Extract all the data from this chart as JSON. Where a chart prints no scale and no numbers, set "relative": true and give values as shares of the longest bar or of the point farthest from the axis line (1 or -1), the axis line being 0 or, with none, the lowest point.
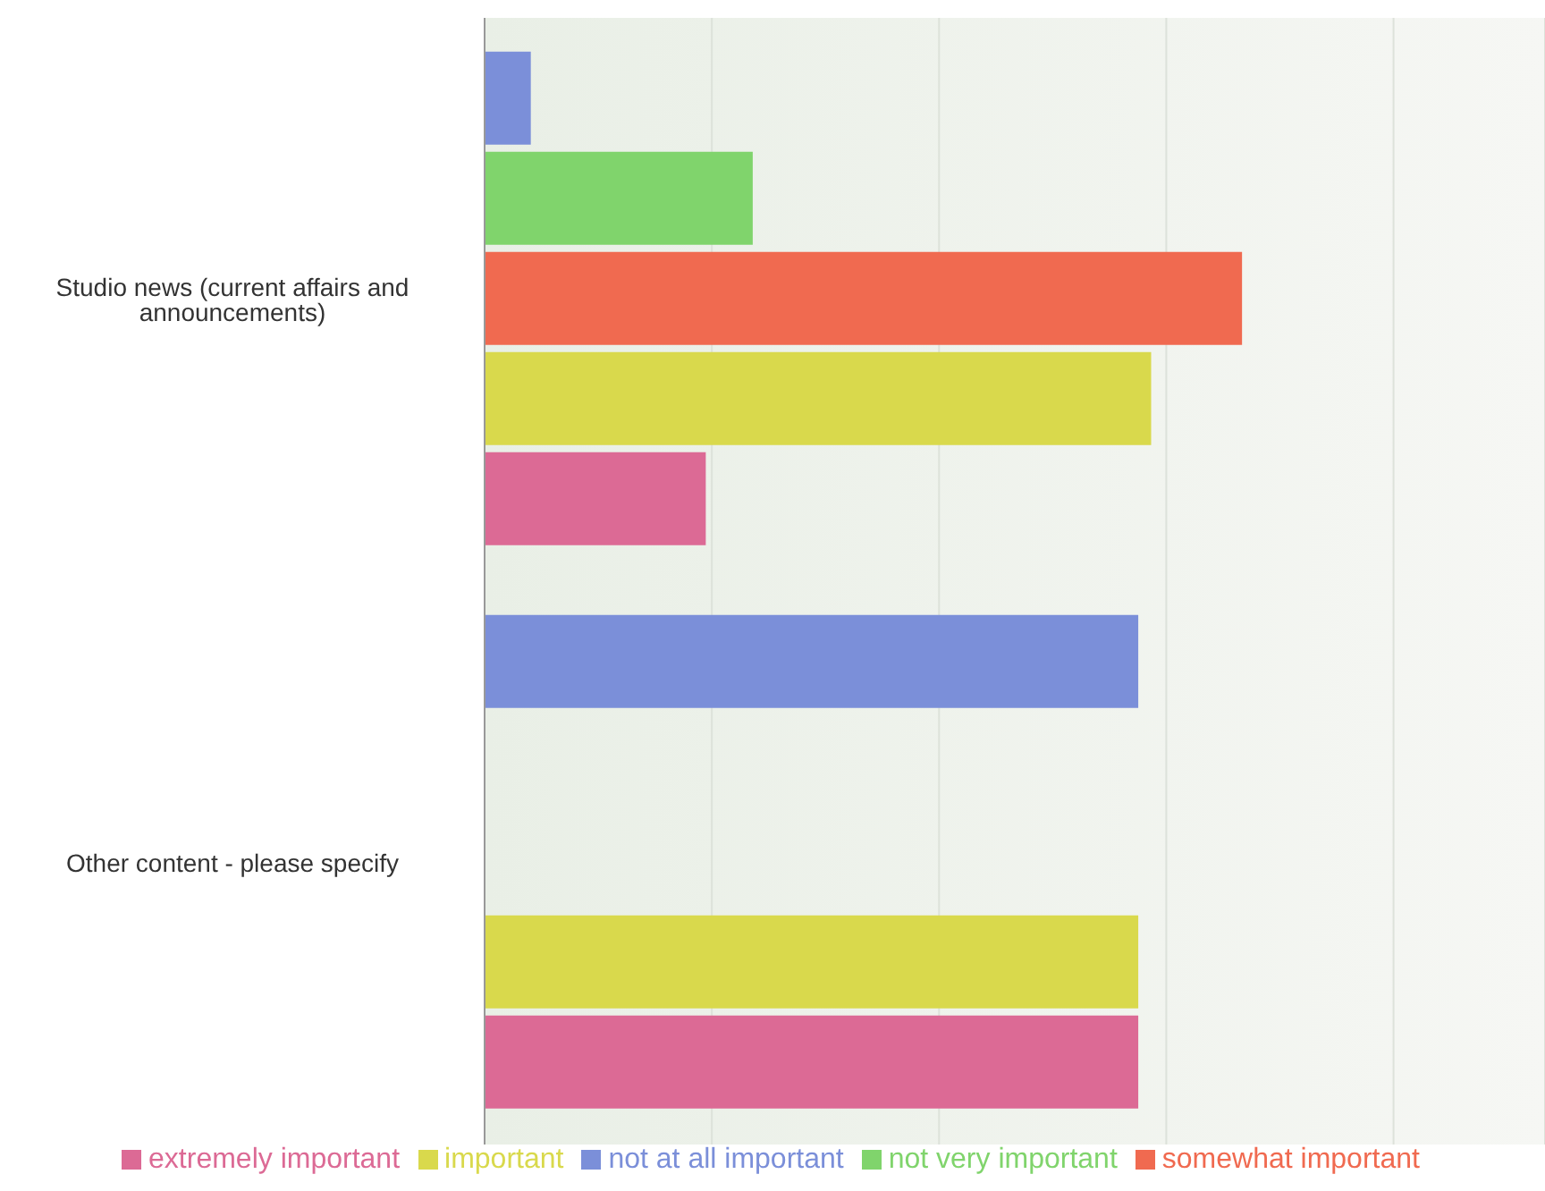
{
  "chart_data": {
    "type": "bar",
    "orientation": "horizontal",
    "relative": true,
    "categories": [
      "Studio news (current affairs and announcements)",
      "Other content - please specify"
    ],
    "series": [
      {
        "name": "not at all important",
        "color": "#7b8fd9",
        "values": [
          0.061,
          0.863
        ]
      },
      {
        "name": "not very important",
        "color": "#80d46c",
        "values": [
          0.354,
          null
        ]
      },
      {
        "name": "somewhat important",
        "color": "#f06a50",
        "values": [
          1,
          null
        ]
      },
      {
        "name": "important",
        "color": "#d9d94c",
        "values": [
          0.88,
          0.863
        ]
      },
      {
        "name": "extremely important",
        "color": "#dc6a95",
        "values": [
          0.292,
          0.863
        ]
      }
    ],
    "grid": "x",
    "legend": "bottom"
  }
}
